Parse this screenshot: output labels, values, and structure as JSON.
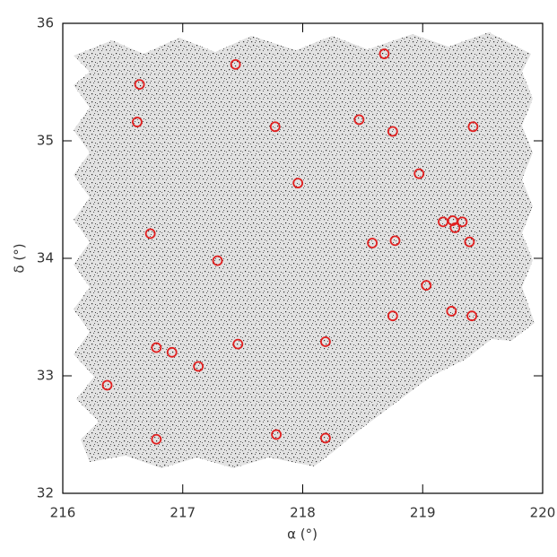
{
  "chart_data": {
    "type": "scatter",
    "xlabel": "α (°)",
    "ylabel": "δ (°)",
    "xlim": [
      216,
      220
    ],
    "ylim": [
      32,
      36
    ],
    "xticks": [
      216,
      217,
      218,
      219,
      220
    ],
    "yticks": [
      32,
      33,
      34,
      35,
      36
    ],
    "series": [
      {
        "color": "#e02020",
        "x": [
          217.44,
          218.68,
          216.64,
          216.62,
          217.77,
          218.47,
          218.75,
          219.42,
          217.96,
          218.97,
          219.17,
          219.25,
          219.33,
          219.27,
          216.73,
          218.58,
          218.77,
          219.39,
          217.29,
          219.03,
          218.75,
          219.24,
          219.41,
          216.78,
          216.91,
          217.46,
          217.13,
          218.19,
          216.37,
          216.78,
          217.78,
          218.19
        ],
        "values": [
          35.65,
          35.74,
          35.48,
          35.16,
          35.12,
          35.18,
          35.08,
          35.12,
          34.64,
          34.72,
          34.31,
          34.32,
          34.31,
          34.26,
          34.21,
          34.13,
          34.15,
          34.14,
          33.98,
          33.77,
          33.51,
          33.55,
          33.51,
          33.24,
          33.2,
          33.27,
          33.08,
          33.29,
          32.92,
          32.46,
          32.5,
          32.47
        ]
      }
    ]
  }
}
